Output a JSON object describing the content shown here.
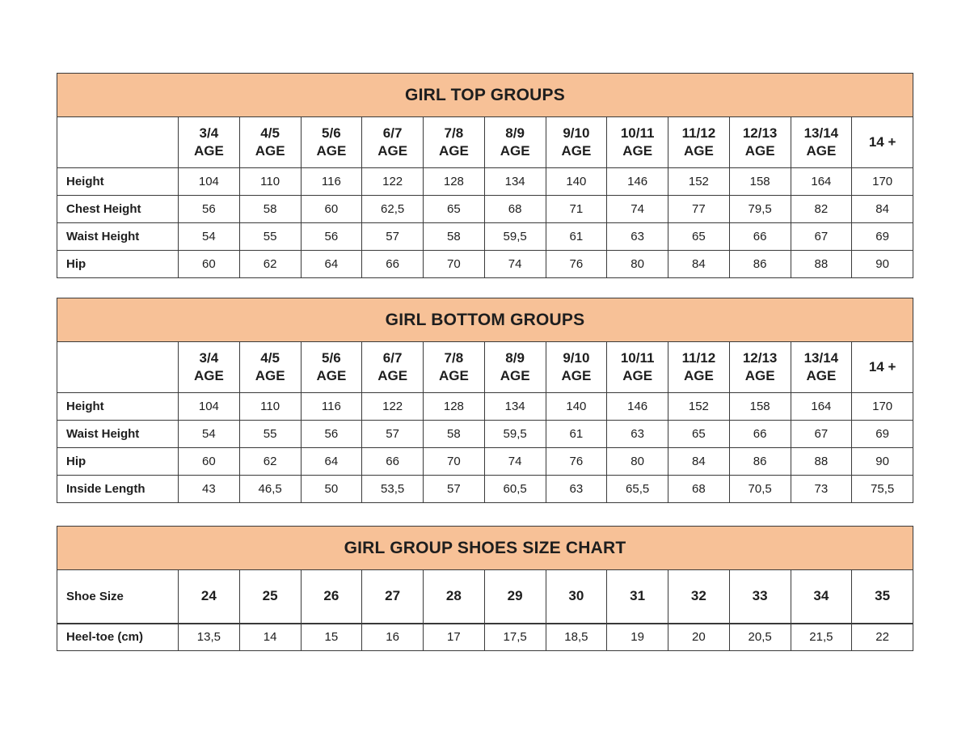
{
  "colors": {
    "title_band_background": "#f7c197",
    "table_border": "#3a3a3a",
    "text": "#1e1e1e",
    "page_background": "#ffffff"
  },
  "chart_data": [
    {
      "type": "table",
      "name": "girl-top-groups",
      "title": "GIRL TOP GROUPS",
      "column_headers": [
        {
          "top": "3/4",
          "bottom": "AGE"
        },
        {
          "top": "4/5",
          "bottom": "AGE"
        },
        {
          "top": "5/6",
          "bottom": "AGE"
        },
        {
          "top": "6/7",
          "bottom": "AGE"
        },
        {
          "top": "7/8",
          "bottom": "AGE"
        },
        {
          "top": "8/9",
          "bottom": "AGE"
        },
        {
          "top": "9/10",
          "bottom": "AGE"
        },
        {
          "top": "10/11",
          "bottom": "AGE"
        },
        {
          "top": "11/12",
          "bottom": "AGE"
        },
        {
          "top": "12/13",
          "bottom": "AGE"
        },
        {
          "top": "13/14",
          "bottom": "AGE"
        },
        {
          "top": "14 +",
          "bottom": ""
        }
      ],
      "rows": [
        {
          "label": "Height",
          "values": [
            "104",
            "110",
            "116",
            "122",
            "128",
            "134",
            "140",
            "146",
            "152",
            "158",
            "164",
            "170"
          ]
        },
        {
          "label": "Chest Height",
          "values": [
            "56",
            "58",
            "60",
            "62,5",
            "65",
            "68",
            "71",
            "74",
            "77",
            "79,5",
            "82",
            "84"
          ]
        },
        {
          "label": "Waist Height",
          "values": [
            "54",
            "55",
            "56",
            "57",
            "58",
            "59,5",
            "61",
            "63",
            "65",
            "66",
            "67",
            "69"
          ]
        },
        {
          "label": "Hip",
          "values": [
            "60",
            "62",
            "64",
            "66",
            "70",
            "74",
            "76",
            "80",
            "84",
            "86",
            "88",
            "90"
          ]
        }
      ]
    },
    {
      "type": "table",
      "name": "girl-bottom-groups",
      "title": "GIRL BOTTOM GROUPS",
      "column_headers": [
        {
          "top": "3/4",
          "bottom": "AGE"
        },
        {
          "top": "4/5",
          "bottom": "AGE"
        },
        {
          "top": "5/6",
          "bottom": "AGE"
        },
        {
          "top": "6/7",
          "bottom": "AGE"
        },
        {
          "top": "7/8",
          "bottom": "AGE"
        },
        {
          "top": "8/9",
          "bottom": "AGE"
        },
        {
          "top": "9/10",
          "bottom": "AGE"
        },
        {
          "top": "10/11",
          "bottom": "AGE"
        },
        {
          "top": "11/12",
          "bottom": "AGE"
        },
        {
          "top": "12/13",
          "bottom": "AGE"
        },
        {
          "top": "13/14",
          "bottom": "AGE"
        },
        {
          "top": "14 +",
          "bottom": ""
        }
      ],
      "rows": [
        {
          "label": "Height",
          "values": [
            "104",
            "110",
            "116",
            "122",
            "128",
            "134",
            "140",
            "146",
            "152",
            "158",
            "164",
            "170"
          ]
        },
        {
          "label": "Waist Height",
          "values": [
            "54",
            "55",
            "56",
            "57",
            "58",
            "59,5",
            "61",
            "63",
            "65",
            "66",
            "67",
            "69"
          ]
        },
        {
          "label": "Hip",
          "values": [
            "60",
            "62",
            "64",
            "66",
            "70",
            "74",
            "76",
            "80",
            "84",
            "86",
            "88",
            "90"
          ]
        },
        {
          "label": "Inside Length",
          "values": [
            "43",
            "46,5",
            "50",
            "53,5",
            "57",
            "60,5",
            "63",
            "65,5",
            "68",
            "70,5",
            "73",
            "75,5"
          ]
        }
      ]
    },
    {
      "type": "table",
      "name": "girl-group-shoes-size-chart",
      "title": "GIRL GROUP SHOES SIZE CHART",
      "column_headers": null,
      "rows": [
        {
          "label": "Shoe Size",
          "values": [
            "24",
            "25",
            "26",
            "27",
            "28",
            "29",
            "30",
            "31",
            "32",
            "33",
            "34",
            "35"
          ],
          "emphasis": true
        },
        {
          "label": "Heel-toe (cm)",
          "values": [
            "13,5",
            "14",
            "15",
            "16",
            "17",
            "17,5",
            "18,5",
            "19",
            "20",
            "20,5",
            "21,5",
            "22"
          ]
        }
      ]
    }
  ]
}
